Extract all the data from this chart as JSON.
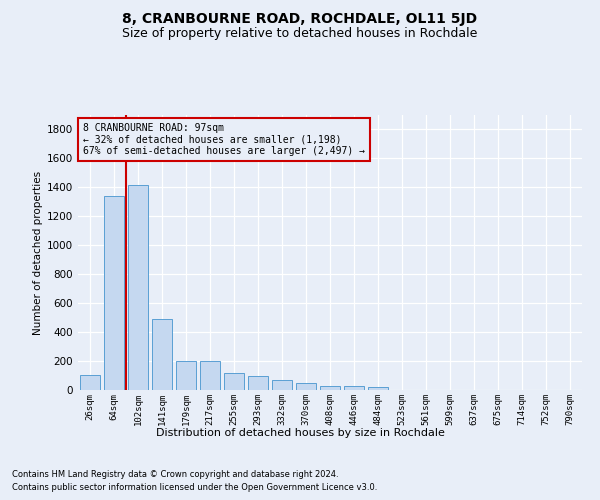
{
  "title": "8, CRANBOURNE ROAD, ROCHDALE, OL11 5JD",
  "subtitle": "Size of property relative to detached houses in Rochdale",
  "xlabel": "Distribution of detached houses by size in Rochdale",
  "ylabel": "Number of detached properties",
  "categories": [
    "26sqm",
    "64sqm",
    "102sqm",
    "141sqm",
    "179sqm",
    "217sqm",
    "255sqm",
    "293sqm",
    "332sqm",
    "370sqm",
    "408sqm",
    "446sqm",
    "484sqm",
    "523sqm",
    "561sqm",
    "599sqm",
    "637sqm",
    "675sqm",
    "714sqm",
    "752sqm",
    "790sqm"
  ],
  "values": [
    105,
    1340,
    1415,
    490,
    200,
    200,
    115,
    100,
    70,
    45,
    25,
    25,
    18,
    0,
    0,
    0,
    0,
    0,
    0,
    0,
    0
  ],
  "bar_color": "#c5d8f0",
  "bar_edge_color": "#5a9fd4",
  "highlight_index": 2,
  "highlight_color": "#cc0000",
  "ylim": [
    0,
    1900
  ],
  "yticks": [
    0,
    200,
    400,
    600,
    800,
    1000,
    1200,
    1400,
    1600,
    1800
  ],
  "annotation_title": "8 CRANBOURNE ROAD: 97sqm",
  "annotation_line1": "← 32% of detached houses are smaller (1,198)",
  "annotation_line2": "67% of semi-detached houses are larger (2,497) →",
  "annotation_box_color": "#cc0000",
  "footnote1": "Contains HM Land Registry data © Crown copyright and database right 2024.",
  "footnote2": "Contains public sector information licensed under the Open Government Licence v3.0.",
  "bg_color": "#e8eef8",
  "grid_color": "#ffffff",
  "title_fontsize": 10,
  "subtitle_fontsize": 9
}
